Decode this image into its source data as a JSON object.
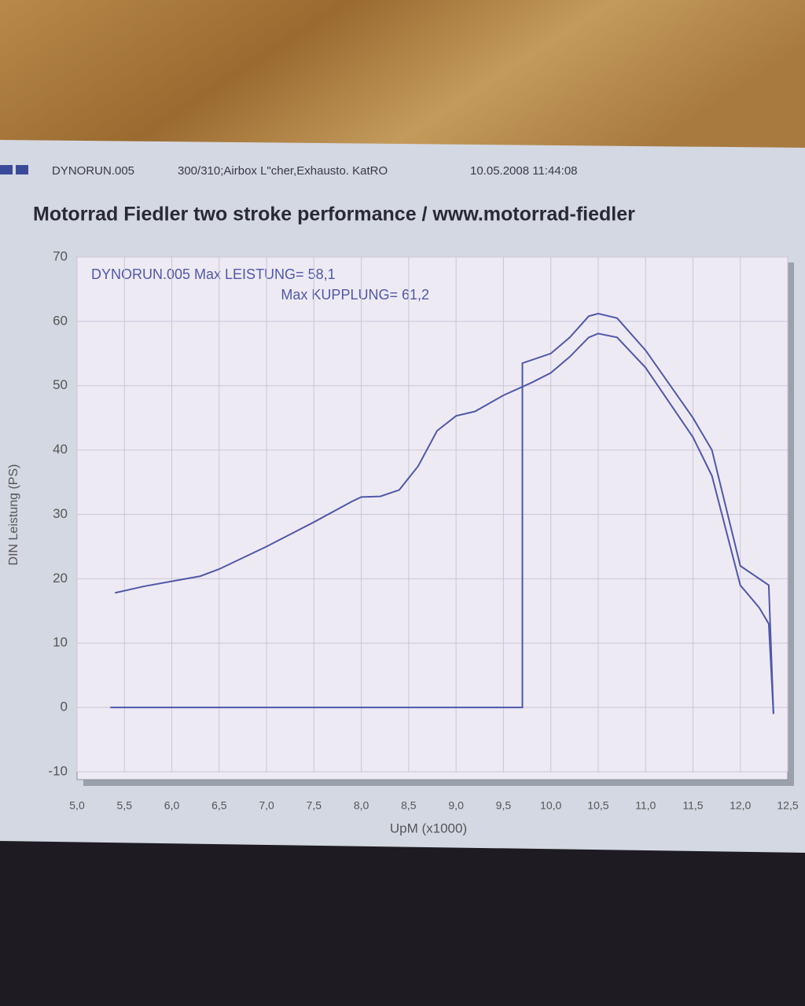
{
  "chart_data": {
    "type": "line",
    "header": {
      "run": "DYNORUN.005",
      "setup": "300/310;Airbox L\"cher,Exhausto. KatRO",
      "timestamp": "10.05.2008 11:44:08"
    },
    "title": "Motorrad Fiedler two stroke performance / www.motorrad-fiedler",
    "annotations": [
      "DYNORUN.005  Max LEISTUNG= 58,1",
      "Max KUPPLUNG= 61,2"
    ],
    "xlabel": "UpM (x1000)",
    "ylabel": "DIN Leistung (PS)",
    "xlim": [
      5,
      12.5
    ],
    "xticks": [
      {
        "value": 5,
        "label": "5,0"
      },
      {
        "value": 5.5,
        "label": "5,5"
      },
      {
        "value": 6,
        "label": "6,0"
      },
      {
        "value": 6.5,
        "label": "6,5"
      },
      {
        "value": 7,
        "label": "7,0"
      },
      {
        "value": 7.5,
        "label": "7,5"
      },
      {
        "value": 8,
        "label": "8,0"
      },
      {
        "value": 8.5,
        "label": "8,5"
      },
      {
        "value": 9,
        "label": "9,0"
      },
      {
        "value": 9.5,
        "label": "9,5"
      },
      {
        "value": 10,
        "label": "10,0"
      },
      {
        "value": 10.5,
        "label": "10,5"
      },
      {
        "value": 11,
        "label": "11,0"
      },
      {
        "value": 11.5,
        "label": "11,5"
      },
      {
        "value": 12,
        "label": "12,0"
      },
      {
        "value": 12.5,
        "label": "12,5"
      }
    ],
    "ylim": [
      -10,
      70
    ],
    "yticks": [
      -10,
      0,
      10,
      20,
      30,
      40,
      50,
      60,
      70
    ],
    "grid": true,
    "series": [
      {
        "color": "#4f58a8",
        "x": [
          5.4,
          5.7,
          6.0,
          6.3,
          6.5,
          7.0,
          7.5,
          7.9,
          8.0,
          8.2,
          8.4,
          8.6,
          8.8,
          9.0,
          9.2,
          9.5,
          9.8,
          10.0,
          10.2,
          10.4,
          10.5,
          10.7,
          11.0,
          11.5,
          11.7,
          12.0,
          12.2,
          12.3,
          12.35
        ],
        "values": [
          17.8,
          18.8,
          19.6,
          20.4,
          21.5,
          25.0,
          28.8,
          32.0,
          32.7,
          32.8,
          33.8,
          37.5,
          43.0,
          45.3,
          46.0,
          48.5,
          50.5,
          52.0,
          54.5,
          57.5,
          58.1,
          57.5,
          52.8,
          42.0,
          36.0,
          19.0,
          15.5,
          13.0,
          -1
        ]
      },
      {
        "color": "#4f58a8",
        "x": [
          5.35,
          9.7,
          9.7,
          10.0,
          10.2,
          10.4,
          10.5,
          10.7,
          11.0,
          11.5,
          11.7,
          12.0,
          12.3,
          12.35
        ],
        "values": [
          0,
          0,
          53.5,
          55.0,
          57.5,
          60.8,
          61.2,
          60.5,
          55.5,
          45.0,
          40.0,
          22.0,
          19.0,
          -1
        ]
      }
    ]
  }
}
